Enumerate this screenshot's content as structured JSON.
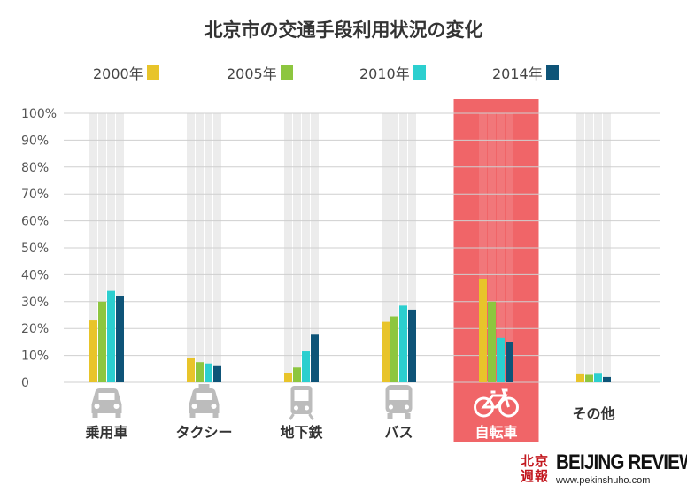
{
  "chart_data": {
    "type": "bar",
    "title": "北京市の交通手段利用状況の変化",
    "categories": [
      "乗用車",
      "タクシー",
      "地下鉄",
      "バス",
      "自転車",
      "その他"
    ],
    "category_icons": [
      "car-icon",
      "taxi-icon",
      "subway-icon",
      "bus-icon",
      "bicycle-icon",
      null
    ],
    "highlighted_category": "自転車",
    "series": [
      {
        "name": "2000年",
        "color": "#e8c42a",
        "values": [
          23,
          9,
          3.5,
          22.5,
          38.5,
          3
        ]
      },
      {
        "name": "2005年",
        "color": "#8dc63f",
        "values": [
          30,
          7.5,
          5.5,
          24.5,
          30,
          2.8
        ]
      },
      {
        "name": "2010年",
        "color": "#2ccfcf",
        "values": [
          34,
          7,
          11.5,
          28.5,
          16.5,
          3.2
        ]
      },
      {
        "name": "2014年",
        "color": "#0e5478",
        "values": [
          32,
          6,
          18,
          27,
          15,
          2
        ]
      }
    ],
    "y_ticks": [
      "0",
      "10%",
      "20%",
      "30%",
      "40%",
      "50%",
      "60%",
      "70%",
      "80%",
      "90%",
      "100%"
    ],
    "ylim": [
      0,
      100
    ],
    "grid": true,
    "legend_position": "top",
    "highlight_color": "#f06568",
    "xlabel": "",
    "ylabel": ""
  },
  "logo": {
    "chinese": "北京週報",
    "english": "BEIJING REVIEW",
    "url": "www.pekinshuho.com"
  }
}
